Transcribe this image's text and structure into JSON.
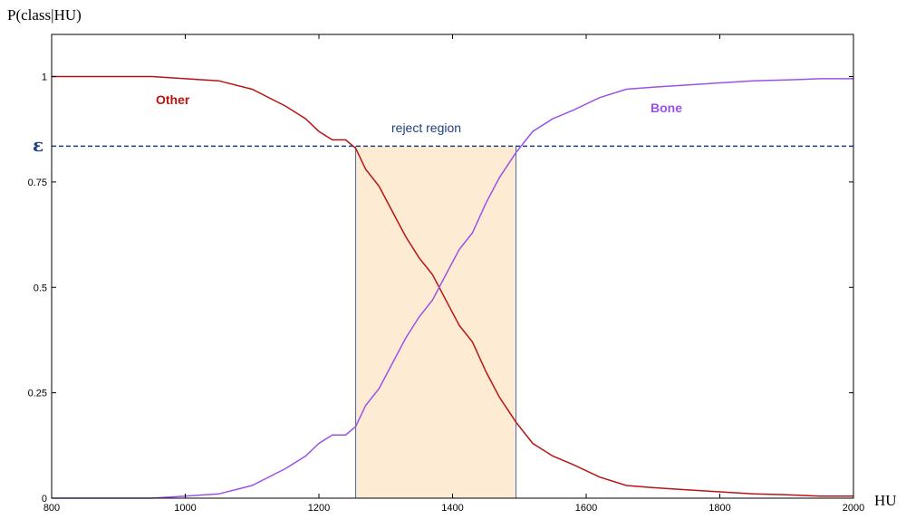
{
  "chart_data": {
    "type": "line",
    "xlabel": "HU",
    "ylabel": "P(class|HU)",
    "xlim": [
      800,
      2000
    ],
    "ylim": [
      0,
      1.1
    ],
    "x_ticks": [
      800,
      1000,
      1200,
      1400,
      1600,
      1800,
      2000
    ],
    "y_ticks": [
      {
        "value": 0,
        "label": "0"
      },
      {
        "value": 0.25,
        "label": "0.25"
      },
      {
        "value": 0.5,
        "label": "0.5"
      },
      {
        "value": 0.75,
        "label": "0.75"
      },
      {
        "value": 1,
        "label": "1"
      }
    ],
    "grid": false,
    "series": [
      {
        "name": "Other",
        "color": "#b81414",
        "x": [
          800,
          900,
          950,
          1000,
          1050,
          1100,
          1150,
          1180,
          1200,
          1220,
          1240,
          1255,
          1270,
          1290,
          1310,
          1330,
          1350,
          1370,
          1390,
          1410,
          1430,
          1450,
          1470,
          1495,
          1520,
          1550,
          1580,
          1620,
          1660,
          1700,
          1750,
          1800,
          1850,
          1900,
          1950,
          2000
        ],
        "values": [
          1.0,
          1.0,
          1.0,
          0.995,
          0.99,
          0.97,
          0.93,
          0.9,
          0.87,
          0.85,
          0.85,
          0.83,
          0.78,
          0.74,
          0.68,
          0.62,
          0.57,
          0.53,
          0.47,
          0.41,
          0.37,
          0.3,
          0.24,
          0.18,
          0.13,
          0.1,
          0.08,
          0.05,
          0.03,
          0.025,
          0.02,
          0.015,
          0.01,
          0.008,
          0.005,
          0.005
        ]
      },
      {
        "name": "Bone",
        "color": "#9a52e6",
        "x": [
          800,
          900,
          950,
          1000,
          1050,
          1100,
          1150,
          1180,
          1200,
          1220,
          1240,
          1255,
          1270,
          1290,
          1310,
          1330,
          1350,
          1370,
          1390,
          1410,
          1430,
          1450,
          1470,
          1495,
          1520,
          1550,
          1580,
          1620,
          1660,
          1700,
          1750,
          1800,
          1850,
          1900,
          1950,
          2000
        ],
        "values": [
          0.0,
          0.0,
          0.0,
          0.005,
          0.01,
          0.03,
          0.07,
          0.1,
          0.13,
          0.15,
          0.15,
          0.17,
          0.22,
          0.26,
          0.32,
          0.38,
          0.43,
          0.47,
          0.53,
          0.59,
          0.63,
          0.7,
          0.76,
          0.82,
          0.87,
          0.9,
          0.92,
          0.95,
          0.97,
          0.975,
          0.98,
          0.985,
          0.99,
          0.992,
          0.995,
          0.995
        ]
      }
    ],
    "annotations": {
      "other_label": "Other",
      "bone_label": "Bone",
      "reject_label": "reject region",
      "epsilon_label": "ε",
      "epsilon": 0.835,
      "reject_region": [
        1255,
        1495
      ],
      "reject_color": "#fdebd3",
      "threshold_color": "#1f3f7f"
    }
  }
}
